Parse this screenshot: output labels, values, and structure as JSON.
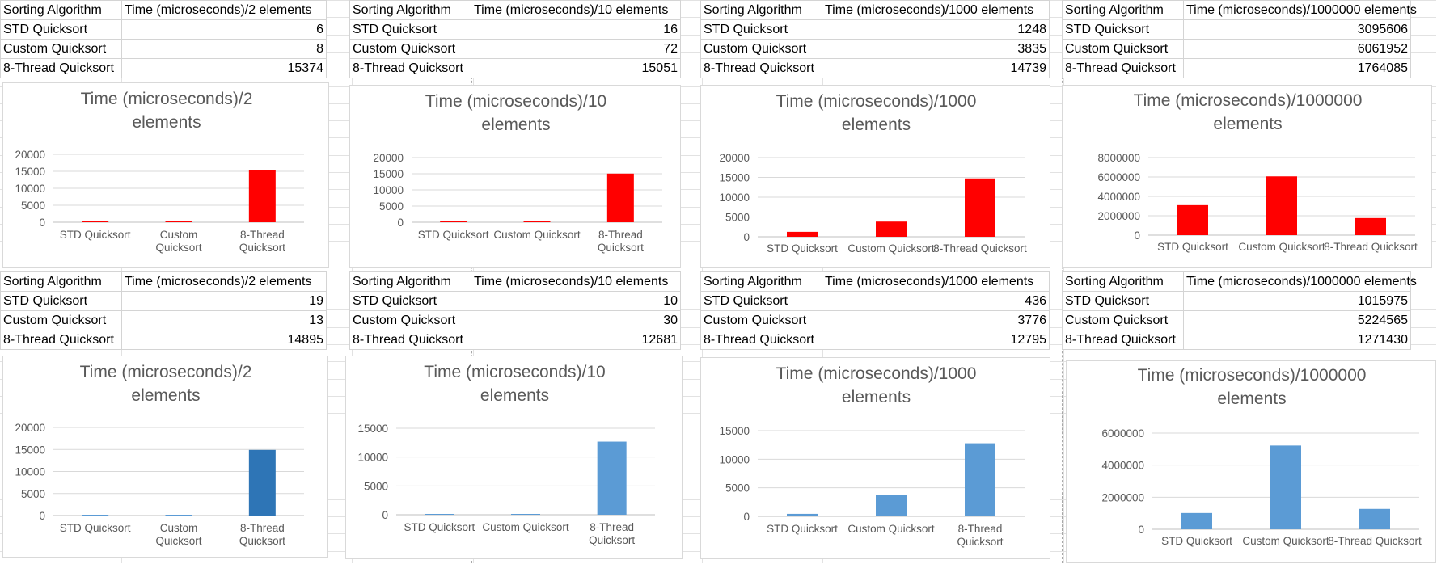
{
  "tables": [
    {
      "header": [
        "Sorting Algorithm",
        "Time (microseconds)/2 elements"
      ],
      "rows": [
        [
          "STD Quicksort",
          "6"
        ],
        [
          "Custom Quicksort",
          "8"
        ],
        [
          "8-Thread Quicksort",
          "15374"
        ]
      ]
    },
    {
      "header": [
        "Sorting Algorithm",
        "Time (microseconds)/10 elements"
      ],
      "rows": [
        [
          "STD Quicksort",
          "16"
        ],
        [
          "Custom Quicksort",
          "72"
        ],
        [
          "8-Thread Quicksort",
          "15051"
        ]
      ]
    },
    {
      "header": [
        "Sorting Algorithm",
        "Time (microseconds)/1000 elements"
      ],
      "rows": [
        [
          "STD Quicksort",
          "1248"
        ],
        [
          "Custom Quicksort",
          "3835"
        ],
        [
          "8-Thread Quicksort",
          "14739"
        ]
      ]
    },
    {
      "header": [
        "Sorting Algorithm",
        "Time (microseconds)/1000000 elements"
      ],
      "rows": [
        [
          "STD Quicksort",
          "3095606"
        ],
        [
          "Custom Quicksort",
          "6061952"
        ],
        [
          "8-Thread Quicksort",
          "1764085"
        ]
      ]
    },
    {
      "header": [
        "Sorting Algorithm",
        "Time (microseconds)/2 elements"
      ],
      "rows": [
        [
          "STD Quicksort",
          "19"
        ],
        [
          "Custom Quicksort",
          "13"
        ],
        [
          "8-Thread Quicksort",
          "14895"
        ]
      ]
    },
    {
      "header": [
        "Sorting Algorithm",
        "Time (microseconds)/10 elements"
      ],
      "rows": [
        [
          "STD Quicksort",
          "10"
        ],
        [
          "Custom Quicksort",
          "30"
        ],
        [
          "8-Thread Quicksort",
          "12681"
        ]
      ]
    },
    {
      "header": [
        "Sorting Algorithm",
        "Time (microseconds)/1000 elements"
      ],
      "rows": [
        [
          "STD Quicksort",
          "436"
        ],
        [
          "Custom Quicksort",
          "3776"
        ],
        [
          "8-Thread Quicksort",
          "12795"
        ]
      ]
    },
    {
      "header": [
        "Sorting Algorithm",
        "Time (microseconds)/1000000 elements"
      ],
      "rows": [
        [
          "STD Quicksort",
          "1015975"
        ],
        [
          "Custom Quicksort",
          "5224565"
        ],
        [
          "8-Thread Quicksort",
          "1271430"
        ]
      ]
    }
  ],
  "chart_data": [
    {
      "type": "bar",
      "title": [
        "Time (microseconds)/2",
        "elements"
      ],
      "categories": [
        [
          "STD Quicksort"
        ],
        [
          "Custom",
          "Quicksort"
        ],
        [
          "8-Thread",
          "Quicksort"
        ]
      ],
      "values": [
        6,
        8,
        15374
      ],
      "ylim": [
        0,
        20000
      ],
      "yticks": [
        "0",
        "5000",
        "10000",
        "15000",
        "20000"
      ],
      "grid": true,
      "colors": [
        "#ff0000",
        "#ff0000",
        "#ff0000"
      ]
    },
    {
      "type": "bar",
      "title": [
        "Time (microseconds)/10",
        "elements"
      ],
      "categories": [
        [
          "STD Quicksort"
        ],
        [
          "Custom Quicksort"
        ],
        [
          "8-Thread",
          "Quicksort"
        ]
      ],
      "values": [
        16,
        72,
        15051
      ],
      "ylim": [
        0,
        20000
      ],
      "yticks": [
        "0",
        "5000",
        "10000",
        "15000",
        "20000"
      ],
      "grid": true,
      "colors": [
        "#ff0000",
        "#ff0000",
        "#ff0000"
      ]
    },
    {
      "type": "bar",
      "title": [
        "Time (microseconds)/1000",
        "elements"
      ],
      "categories": [
        [
          "STD Quicksort"
        ],
        [
          "Custom Quicksort"
        ],
        [
          "8-Thread Quicksort"
        ]
      ],
      "values": [
        1248,
        3835,
        14739
      ],
      "ylim": [
        0,
        20000
      ],
      "yticks": [
        "0",
        "5000",
        "10000",
        "15000",
        "20000"
      ],
      "grid": true,
      "colors": [
        "#ff0000",
        "#ff0000",
        "#ff0000"
      ]
    },
    {
      "type": "bar",
      "title": [
        "Time (microseconds)/1000000",
        "elements"
      ],
      "categories": [
        [
          "STD Quicksort"
        ],
        [
          "Custom Quicksort"
        ],
        [
          "8-Thread Quicksort"
        ]
      ],
      "values": [
        3095606,
        6061952,
        1764085
      ],
      "ylim": [
        0,
        8000000
      ],
      "yticks": [
        "0",
        "2000000",
        "4000000",
        "6000000",
        "8000000"
      ],
      "grid": true,
      "colors": [
        "#ff0000",
        "#ff0000",
        "#ff0000"
      ]
    },
    {
      "type": "bar",
      "title": [
        "Time (microseconds)/2",
        "elements"
      ],
      "categories": [
        [
          "STD Quicksort"
        ],
        [
          "Custom",
          "Quicksort"
        ],
        [
          "8-Thread",
          "Quicksort"
        ]
      ],
      "values": [
        19,
        13,
        14895
      ],
      "ylim": [
        0,
        20000
      ],
      "yticks": [
        "0",
        "5000",
        "10000",
        "15000",
        "20000"
      ],
      "grid": true,
      "colors": [
        "#5b9bd5",
        "#5b9bd5",
        "#2e75b6"
      ]
    },
    {
      "type": "bar",
      "title": [
        "Time (microseconds)/10",
        "elements"
      ],
      "categories": [
        [
          "STD Quicksort"
        ],
        [
          "Custom Quicksort"
        ],
        [
          "8-Thread",
          "Quicksort"
        ]
      ],
      "values": [
        10,
        30,
        12681
      ],
      "ylim": [
        0,
        15000
      ],
      "yticks": [
        "0",
        "5000",
        "10000",
        "15000"
      ],
      "grid": true,
      "colors": [
        "#5b9bd5",
        "#5b9bd5",
        "#5b9bd5"
      ]
    },
    {
      "type": "bar",
      "title": [
        "Time (microseconds)/1000",
        "elements"
      ],
      "categories": [
        [
          "STD Quicksort"
        ],
        [
          "Custom Quicksort"
        ],
        [
          "8-Thread",
          "Quicksort"
        ]
      ],
      "values": [
        436,
        3776,
        12795
      ],
      "ylim": [
        0,
        15000
      ],
      "yticks": [
        "0",
        "5000",
        "10000",
        "15000"
      ],
      "grid": true,
      "colors": [
        "#5b9bd5",
        "#5b9bd5",
        "#5b9bd5"
      ]
    },
    {
      "type": "bar",
      "title": [
        "Time (microseconds)/1000000",
        "elements"
      ],
      "categories": [
        [
          "STD Quicksort"
        ],
        [
          "Custom Quicksort"
        ],
        [
          "8-Thread Quicksort"
        ]
      ],
      "values": [
        1015975,
        5224565,
        1271430
      ],
      "ylim": [
        0,
        6000000
      ],
      "yticks": [
        "0",
        "2000000",
        "4000000",
        "6000000"
      ],
      "grid": true,
      "colors": [
        "#5b9bd5",
        "#5b9bd5",
        "#5b9bd5"
      ]
    }
  ]
}
